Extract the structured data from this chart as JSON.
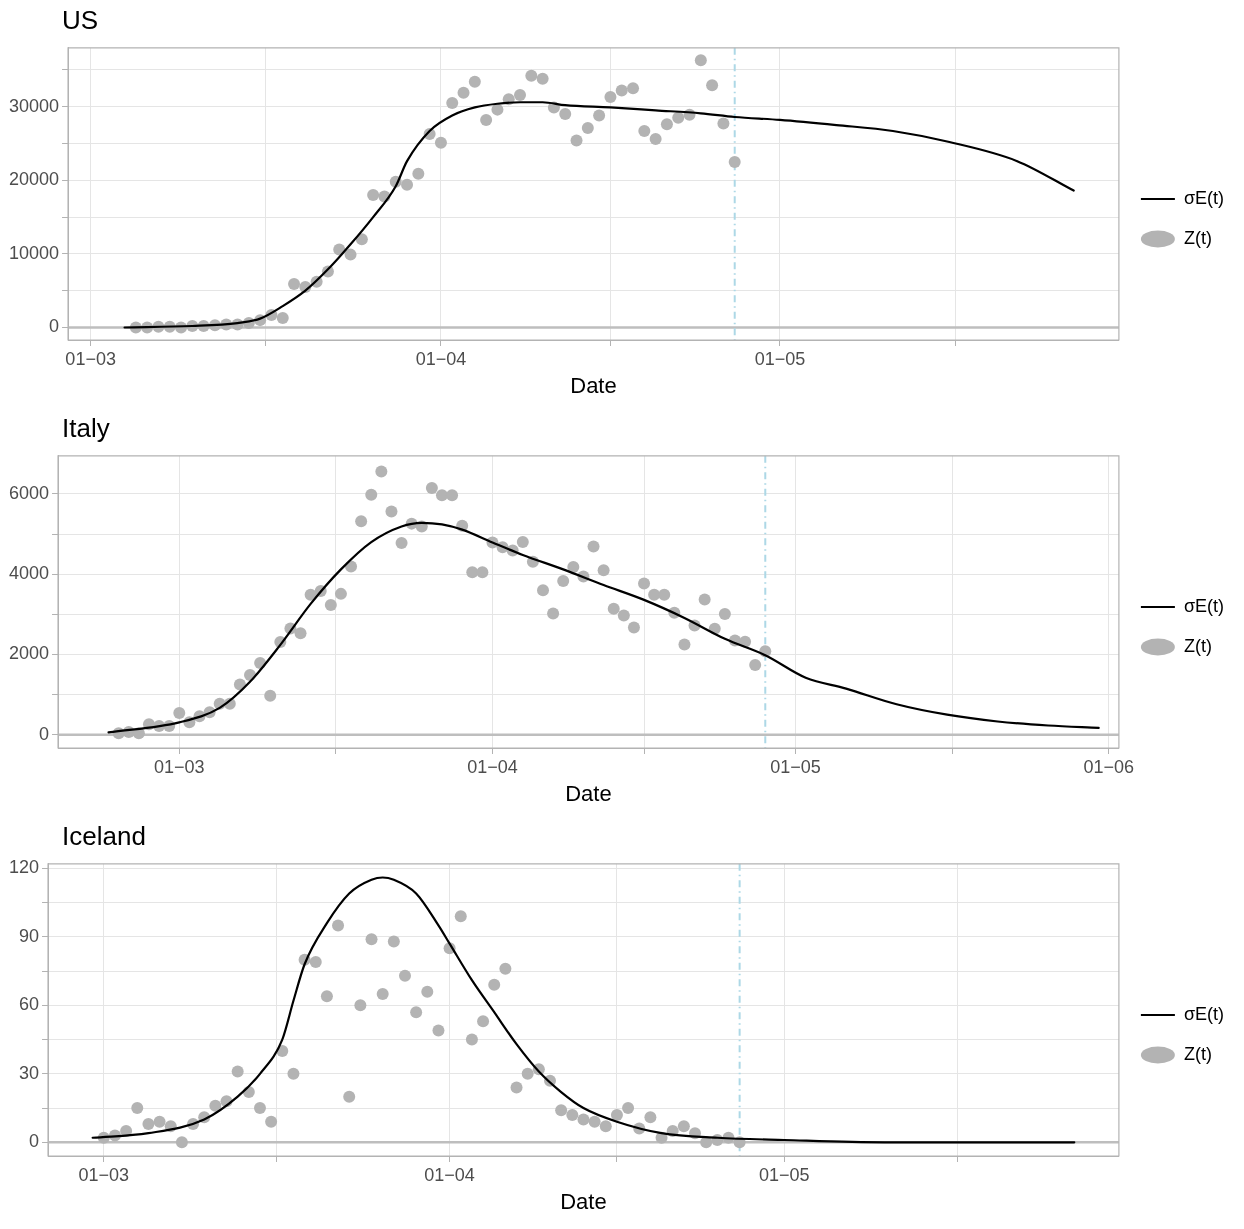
{
  "chart_data": [
    {
      "type": "line",
      "title": "US",
      "xlabel": "Date",
      "legend": "right",
      "grid": true,
      "xlim": [
        "--02-28",
        "--05-31"
      ],
      "xticks": [
        {
          "value": "--03-01",
          "label": "01−03"
        },
        {
          "value": "--03-16T12:00",
          "label": null
        },
        {
          "value": "--04-01",
          "label": "01−04"
        },
        {
          "value": "--04-16",
          "label": null
        },
        {
          "value": "--05-01",
          "label": "01−05"
        },
        {
          "value": "--05-16T12:00",
          "label": null
        }
      ],
      "ylim": [
        -1700,
        38000
      ],
      "yticks": [
        0,
        {
          "value": 5000,
          "label": null
        },
        10000,
        {
          "value": 15000,
          "label": null
        },
        20000,
        {
          "value": 25000,
          "label": null
        },
        30000,
        {
          "value": 35000,
          "label": null
        }
      ],
      "ref_lines": [
        {
          "axis": "y",
          "value": 0,
          "color": "#bebebe",
          "line_style": "solid"
        },
        {
          "axis": "x",
          "value": "--04-27",
          "color": "#add8e6",
          "line_style": "dashed"
        }
      ],
      "series": [
        {
          "name": "σE(t)",
          "type": "line",
          "color": "#000000",
          "marker": "none",
          "line_style": "solid",
          "x": [
            "--03-04",
            "--03-10",
            "--03-14",
            "--03-16",
            "--03-18",
            "--03-20",
            "--03-22",
            "--03-24",
            "--03-26",
            "--03-28",
            "--03-29",
            "--03-31",
            "--04-02",
            "--04-04",
            "--04-06",
            "--04-08",
            "--04-10",
            "--04-12",
            "--04-16",
            "--04-20",
            "--04-24",
            "--04-27",
            "--05-01",
            "--05-06",
            "--05-11",
            "--05-16",
            "--05-22",
            "--05-27"
          ],
          "values": [
            0,
            200,
            600,
            1200,
            2900,
            5000,
            7900,
            11300,
            15000,
            19200,
            22600,
            26700,
            28800,
            29900,
            30400,
            30600,
            30600,
            30200,
            29900,
            29500,
            29100,
            28600,
            28200,
            27500,
            26700,
            25200,
            22600,
            18600
          ]
        },
        {
          "name": "Z(t)",
          "type": "scatter",
          "color": "#b3b3b3",
          "marker": "circle",
          "x": [
            "--03-05",
            "--03-06",
            "--03-07",
            "--03-08",
            "--03-09",
            "--03-10",
            "--03-11",
            "--03-12",
            "--03-13",
            "--03-14",
            "--03-15",
            "--03-16",
            "--03-17",
            "--03-18",
            "--03-19",
            "--03-20",
            "--03-21",
            "--03-22",
            "--03-23",
            "--03-24",
            "--03-25",
            "--03-26",
            "--03-27",
            "--03-28",
            "--03-29",
            "--03-30",
            "--03-31",
            "--04-01",
            "--04-02",
            "--04-03",
            "--04-04",
            "--04-05",
            "--04-06",
            "--04-07",
            "--04-08",
            "--04-09",
            "--04-10",
            "--04-11",
            "--04-12",
            "--04-13",
            "--04-14",
            "--04-15",
            "--04-16",
            "--04-17",
            "--04-18",
            "--04-19",
            "--04-20",
            "--04-21",
            "--04-22",
            "--04-23",
            "--04-24",
            "--04-25",
            "--04-26",
            "--04-27"
          ],
          "values": [
            0,
            0,
            100,
            100,
            0,
            200,
            200,
            300,
            400,
            400,
            600,
            1000,
            1700,
            1300,
            5900,
            5500,
            6200,
            7600,
            10600,
            9900,
            12000,
            18000,
            17800,
            19800,
            19400,
            20900,
            26300,
            25100,
            30500,
            31900,
            33400,
            28200,
            29600,
            31000,
            31600,
            34200,
            33800,
            29900,
            29000,
            25400,
            27100,
            28800,
            31300,
            32200,
            32500,
            26700,
            25600,
            27600,
            28500,
            28900,
            36300,
            32900,
            27700,
            22500
          ]
        }
      ]
    },
    {
      "type": "line",
      "title": "Italy",
      "xlabel": "Date",
      "legend": "right",
      "grid": true,
      "xlim": [
        "--02-18",
        "--06-02"
      ],
      "xticks": [
        {
          "value": "--03-01",
          "label": "01−03"
        },
        {
          "value": "--03-16T12:00",
          "label": null
        },
        {
          "value": "--04-01",
          "label": "01−04"
        },
        {
          "value": "--04-16",
          "label": null
        },
        {
          "value": "--05-01",
          "label": "01−05"
        },
        {
          "value": "--05-16T12:00",
          "label": null
        },
        {
          "value": "--06-01",
          "label": "01−06"
        }
      ],
      "ylim": [
        -330,
        6950
      ],
      "yticks": [
        0,
        {
          "value": 1000,
          "label": null
        },
        2000,
        {
          "value": 3000,
          "label": null
        },
        4000,
        {
          "value": 5000,
          "label": null
        },
        6000
      ],
      "ref_lines": [
        {
          "axis": "y",
          "value": 0,
          "color": "#bebebe",
          "line_style": "solid"
        },
        {
          "axis": "x",
          "value": "--04-28",
          "color": "#add8e6",
          "line_style": "dashed"
        }
      ],
      "series": [
        {
          "name": "σE(t)",
          "type": "line",
          "color": "#000000",
          "marker": "none",
          "line_style": "solid",
          "x": [
            "--02-23",
            "--03-01",
            "--03-05",
            "--03-08",
            "--03-11",
            "--03-14",
            "--03-17",
            "--03-20",
            "--03-23",
            "--03-25",
            "--03-27",
            "--03-29",
            "--04-01",
            "--04-04",
            "--04-08",
            "--04-12",
            "--04-16",
            "--04-20",
            "--04-24",
            "--04-28",
            "--05-02",
            "--05-06",
            "--05-11",
            "--05-16",
            "--05-21",
            "--05-26",
            "--05-31"
          ],
          "values": [
            60,
            310,
            670,
            1320,
            2240,
            3260,
            4120,
            4800,
            5190,
            5280,
            5240,
            5110,
            4790,
            4480,
            4120,
            3730,
            3360,
            2910,
            2390,
            1980,
            1420,
            1150,
            760,
            500,
            330,
            230,
            170
          ]
        },
        {
          "name": "Z(t)",
          "type": "scatter",
          "color": "#b3b3b3",
          "marker": "circle",
          "x": [
            "--02-24",
            "--02-25",
            "--02-26",
            "--02-27",
            "--02-28",
            "--02-29",
            "--03-01",
            "--03-02",
            "--03-03",
            "--03-04",
            "--03-05",
            "--03-06",
            "--03-07",
            "--03-08",
            "--03-09",
            "--03-10",
            "--03-11",
            "--03-12",
            "--03-13",
            "--03-14",
            "--03-15",
            "--03-16",
            "--03-17",
            "--03-18",
            "--03-19",
            "--03-20",
            "--03-21",
            "--03-22",
            "--03-23",
            "--03-24",
            "--03-25",
            "--03-26",
            "--03-27",
            "--03-28",
            "--03-29",
            "--03-30",
            "--03-31",
            "--04-01",
            "--04-02",
            "--04-03",
            "--04-04",
            "--04-05",
            "--04-06",
            "--04-07",
            "--04-08",
            "--04-09",
            "--04-10",
            "--04-11",
            "--04-12",
            "--04-13",
            "--04-14",
            "--04-15",
            "--04-16",
            "--04-17",
            "--04-18",
            "--04-19",
            "--04-20",
            "--04-21",
            "--04-22",
            "--04-23",
            "--04-24",
            "--04-25",
            "--04-26",
            "--04-27",
            "--04-28"
          ],
          "values": [
            40,
            70,
            40,
            260,
            220,
            220,
            540,
            310,
            460,
            560,
            770,
            770,
            1250,
            1490,
            1790,
            970,
            2310,
            2650,
            2530,
            3490,
            3580,
            3230,
            3510,
            4190,
            5320,
            5980,
            6560,
            5560,
            4780,
            5260,
            5190,
            6150,
            5970,
            5970,
            5210,
            4050,
            4050,
            4790,
            4670,
            4590,
            4800,
            4310,
            3600,
            3020,
            3830,
            4180,
            3940,
            4690,
            4100,
            3140,
            2970,
            2670,
            3770,
            3490,
            3490,
            3040,
            2250,
            2720,
            3370,
            2640,
            3010,
            2350,
            2320,
            1740,
            2080
          ]
        }
      ]
    },
    {
      "type": "line",
      "title": "Iceland",
      "xlabel": "Date",
      "legend": "right",
      "grid": true,
      "xlim": [
        "--02-25",
        "--05-31"
      ],
      "xticks": [
        {
          "value": "--03-01",
          "label": "01−03"
        },
        {
          "value": "--03-16T12:00",
          "label": null
        },
        {
          "value": "--04-01",
          "label": "01−04"
        },
        {
          "value": "--04-16",
          "label": null
        },
        {
          "value": "--05-01",
          "label": "01−05"
        },
        {
          "value": "--05-16T12:00",
          "label": null
        }
      ],
      "ylim": [
        -6,
        122
      ],
      "yticks": [
        0,
        {
          "value": 15,
          "label": null
        },
        30,
        {
          "value": 45,
          "label": null
        },
        60,
        {
          "value": 75,
          "label": null
        },
        90,
        {
          "value": 105,
          "label": null
        },
        120
      ],
      "ref_lines": [
        {
          "axis": "y",
          "value": 0,
          "color": "#bebebe",
          "line_style": "solid"
        },
        {
          "axis": "x",
          "value": "--04-27",
          "color": "#add8e6",
          "line_style": "dashed"
        }
      ],
      "series": [
        {
          "name": "σE(t)",
          "type": "line",
          "color": "#000000",
          "marker": "none",
          "line_style": "solid",
          "x": [
            "--02-29",
            "--03-05",
            "--03-10",
            "--03-13",
            "--03-15",
            "--03-17",
            "--03-18",
            "--03-19",
            "--03-21",
            "--03-23",
            "--03-25",
            "--03-26",
            "--03-27",
            "--03-29",
            "--03-31",
            "--04-01",
            "--04-03",
            "--04-05",
            "--04-07",
            "--04-09",
            "--04-11",
            "--04-13",
            "--04-16",
            "--04-20",
            "--04-25",
            "--05-01",
            "--05-10",
            "--05-27"
          ],
          "values": [
            2,
            4,
            10,
            20,
            30,
            45,
            62,
            78,
            96,
            109,
            115,
            116,
            115,
            109,
            95,
            87,
            71,
            57,
            43,
            31,
            22,
            15,
            9,
            4,
            2,
            1,
            0,
            0
          ]
        },
        {
          "name": "Z(t)",
          "type": "scatter",
          "color": "#b3b3b3",
          "marker": "circle",
          "x": [
            "--03-01",
            "--03-02",
            "--03-03",
            "--03-04",
            "--03-05",
            "--03-06",
            "--03-07",
            "--03-08",
            "--03-09",
            "--03-10",
            "--03-11",
            "--03-12",
            "--03-13",
            "--03-14",
            "--03-15",
            "--03-16",
            "--03-17",
            "--03-18",
            "--03-19",
            "--03-20",
            "--03-21",
            "--03-22",
            "--03-23",
            "--03-24",
            "--03-25",
            "--03-26",
            "--03-27",
            "--03-28",
            "--03-29",
            "--03-30",
            "--03-31",
            "--04-01",
            "--04-02",
            "--04-03",
            "--04-04",
            "--04-05",
            "--04-06",
            "--04-07",
            "--04-08",
            "--04-09",
            "--04-10",
            "--04-11",
            "--04-12",
            "--04-13",
            "--04-14",
            "--04-15",
            "--04-16",
            "--04-17",
            "--04-18",
            "--04-19",
            "--04-20",
            "--04-21",
            "--04-22",
            "--04-23",
            "--04-24",
            "--04-25",
            "--04-26",
            "--04-27"
          ],
          "values": [
            2,
            3,
            5,
            15,
            8,
            9,
            7,
            0,
            8,
            11,
            16,
            18,
            31,
            22,
            15,
            9,
            40,
            30,
            80,
            79,
            64,
            95,
            20,
            60,
            89,
            65,
            88,
            73,
            57,
            66,
            49,
            85,
            99,
            45,
            53,
            69,
            76,
            24,
            30,
            32,
            27,
            14,
            12,
            10,
            9,
            7,
            12,
            15,
            6,
            11,
            2,
            5,
            7,
            4,
            0,
            1,
            2,
            0
          ]
        }
      ]
    }
  ]
}
